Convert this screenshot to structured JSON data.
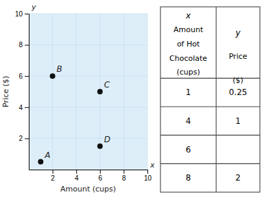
{
  "chart_data": {
    "type": "scatter",
    "x": [
      1,
      2,
      6,
      6
    ],
    "values": [
      0.5,
      6,
      5,
      1.5
    ],
    "point_labels": [
      "A",
      "B",
      "C",
      "D"
    ],
    "color": "#111111",
    "xlabel": "Amount (cups)",
    "ylabel": "Price ($)",
    "axis_letters": [
      "x",
      "y"
    ],
    "xlim": [
      0,
      10
    ],
    "ylim": [
      0,
      10
    ],
    "xticks": [
      2,
      4,
      6,
      8,
      10
    ],
    "yticks": [
      2,
      4,
      6,
      8,
      10
    ],
    "grid": true,
    "table": {
      "header": [
        [
          "x",
          "Amount",
          "of Hot",
          "Chocolate",
          "(cups)"
        ],
        [
          "y",
          "Price",
          "($)"
        ]
      ],
      "rows": [
        [
          "1",
          "0.25"
        ],
        [
          "4",
          "1"
        ],
        [
          "6",
          null
        ],
        [
          "8",
          "2"
        ]
      ]
    }
  }
}
